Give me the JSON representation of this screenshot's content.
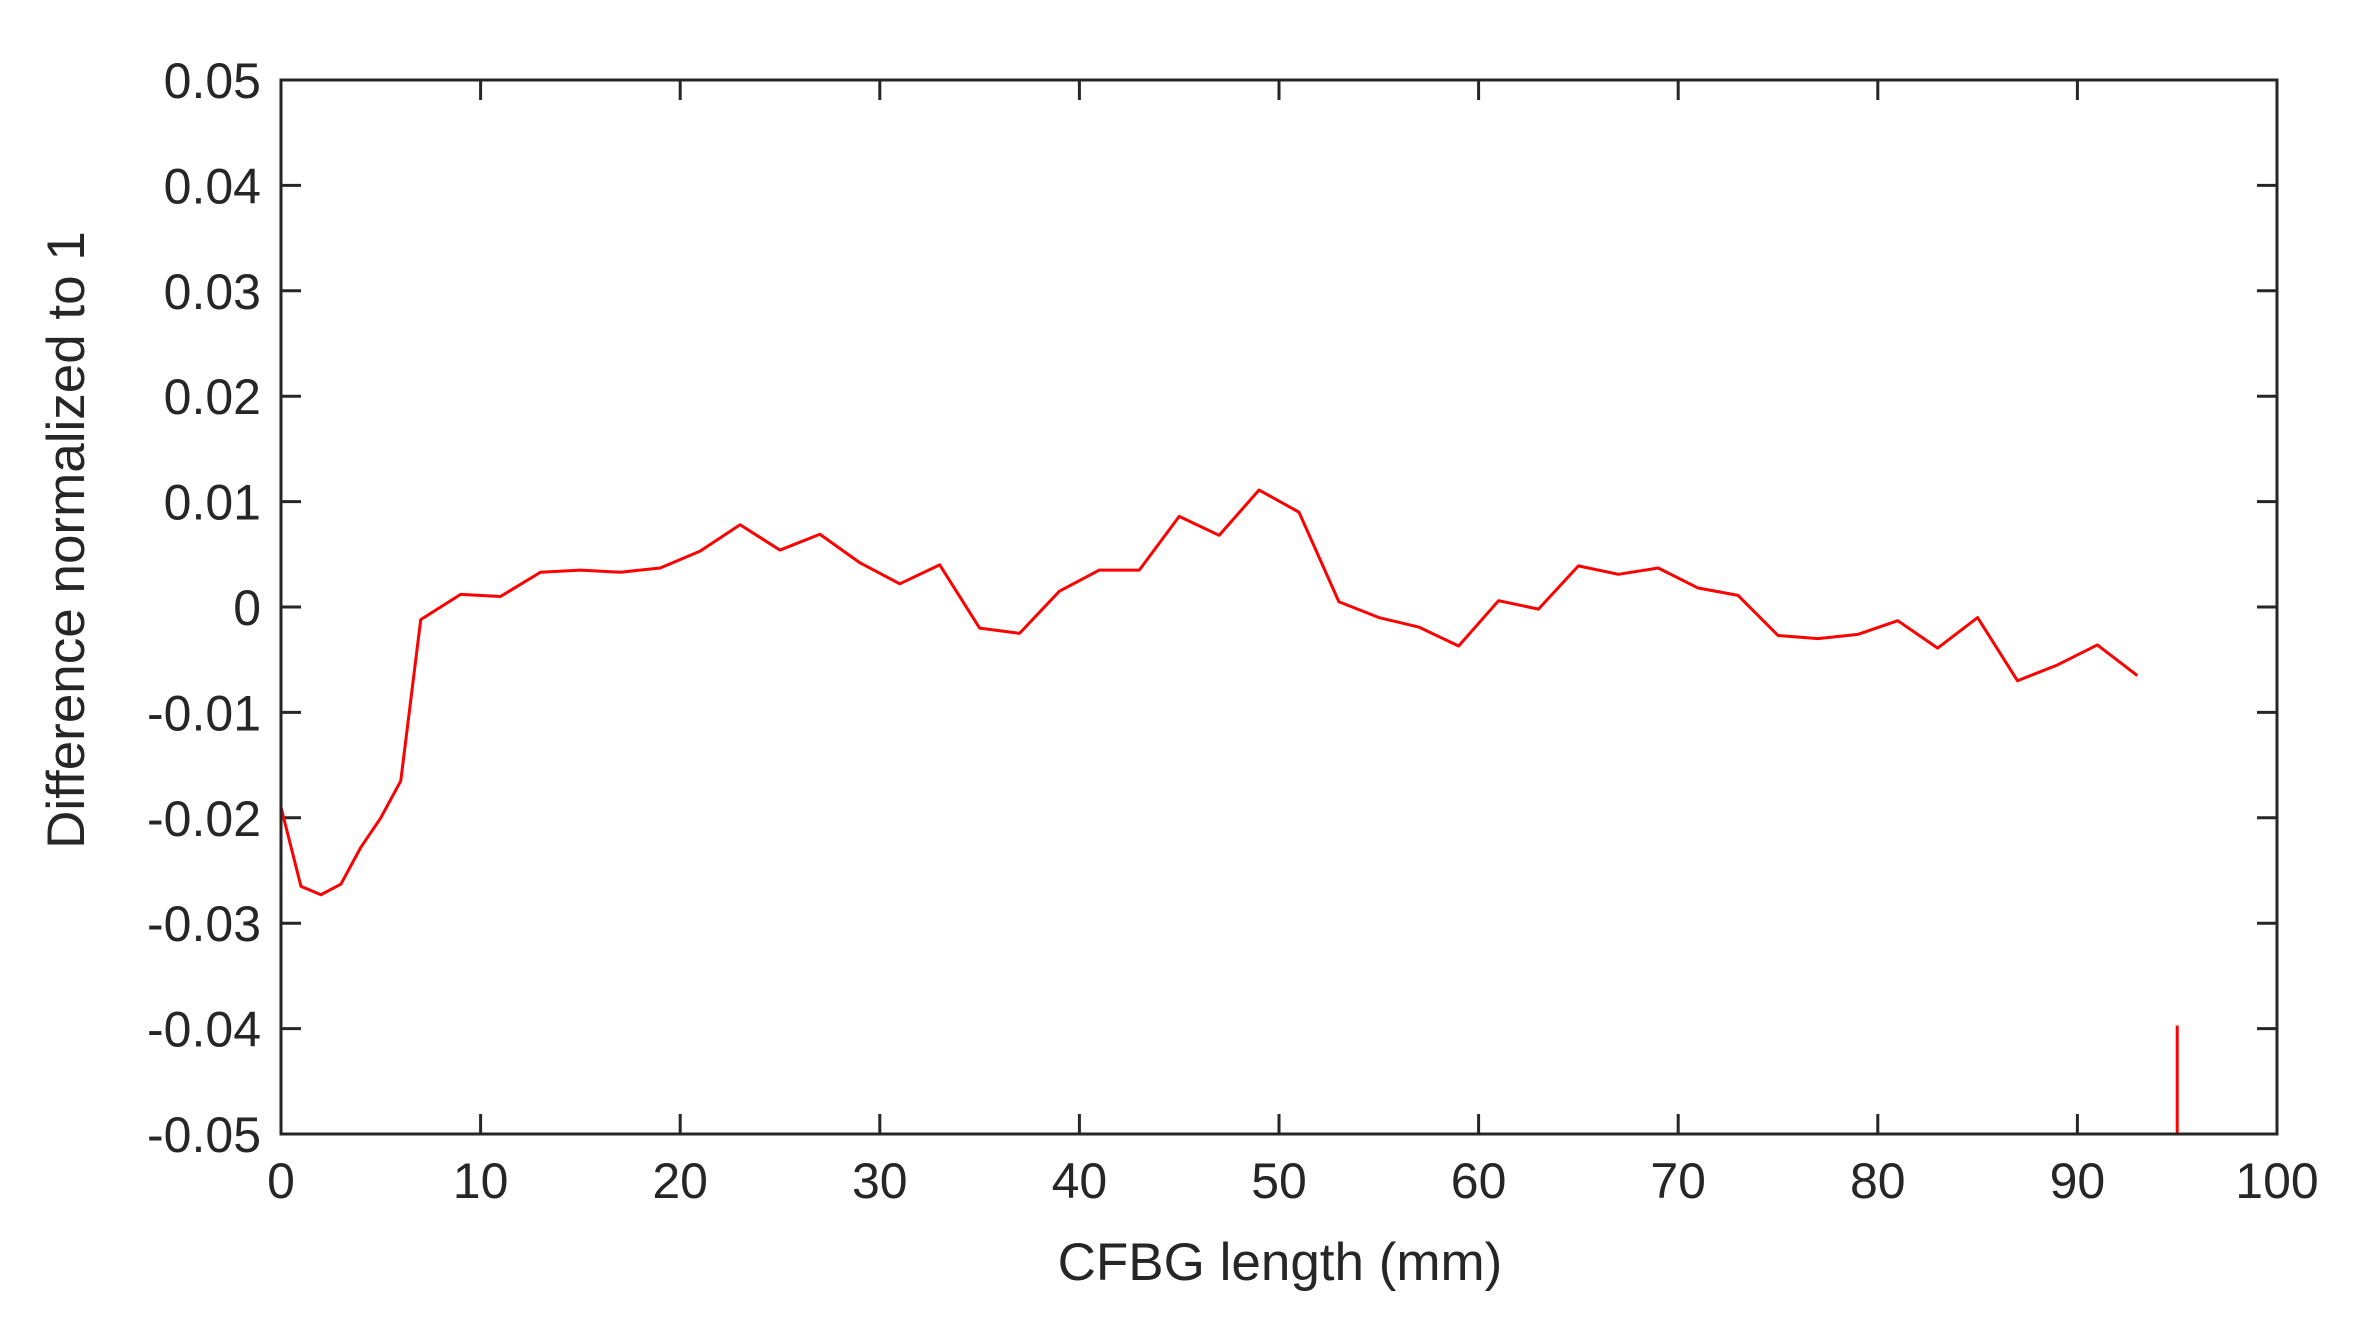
{
  "chart_data": {
    "type": "line",
    "title": "",
    "xlabel": "CFBG length (mm)",
    "ylabel": "Difference normalized to 1",
    "xlim": [
      0,
      100
    ],
    "ylim": [
      -0.05,
      0.05
    ],
    "grid": false,
    "legend": "none",
    "x_ticks": [
      0,
      10,
      20,
      30,
      40,
      50,
      60,
      70,
      80,
      90,
      100
    ],
    "x_tick_labels": [
      "0",
      "10",
      "20",
      "30",
      "40",
      "50",
      "60",
      "70",
      "80",
      "90",
      "100"
    ],
    "y_ticks": [
      0.05,
      0.04,
      0.03,
      0.02,
      0.01,
      0,
      -0.01,
      -0.02,
      -0.03,
      -0.04,
      -0.05
    ],
    "y_tick_labels": [
      "0.05",
      "0.04",
      "0.03",
      "0.02",
      "0.01",
      "0",
      "-0.01",
      "-0.02",
      "-0.03",
      "-0.04",
      "-0.05"
    ],
    "line_color": "#ff0000",
    "series": [
      {
        "x": [
          0,
          1,
          2,
          3,
          4,
          5,
          6,
          7,
          9,
          11,
          13,
          15,
          17,
          19,
          21,
          23,
          25,
          27,
          29,
          31,
          33,
          35,
          37,
          39,
          41,
          43,
          45,
          47,
          49,
          51,
          53,
          55,
          57,
          59,
          61,
          63,
          65,
          67,
          69,
          71,
          73,
          75,
          77,
          79,
          81,
          83,
          85,
          87,
          89,
          91,
          93,
          null,
          95,
          95
        ],
        "y": [
          -0.019,
          -0.0265,
          -0.0273,
          -0.0263,
          -0.0228,
          -0.02,
          -0.0165,
          -0.0012,
          0.0012,
          0.001,
          0.0033,
          0.0035,
          0.0033,
          0.0037,
          0.0053,
          0.0078,
          0.0054,
          0.0069,
          0.0042,
          0.0022,
          0.004,
          -0.002,
          -0.0025,
          0.0015,
          0.0035,
          0.0035,
          0.0086,
          0.0068,
          0.0111,
          0.009,
          0.0005,
          -0.001,
          -0.0019,
          -0.0037,
          0.0006,
          -0.0002,
          0.0039,
          0.0031,
          0.0037,
          0.0018,
          0.0011,
          -0.0027,
          -0.003,
          -0.0026,
          -0.0013,
          -0.0039,
          -0.001,
          -0.007,
          -0.0055,
          -0.0036,
          -0.0065,
          null,
          -0.0397,
          -0.0505
        ]
      }
    ]
  }
}
